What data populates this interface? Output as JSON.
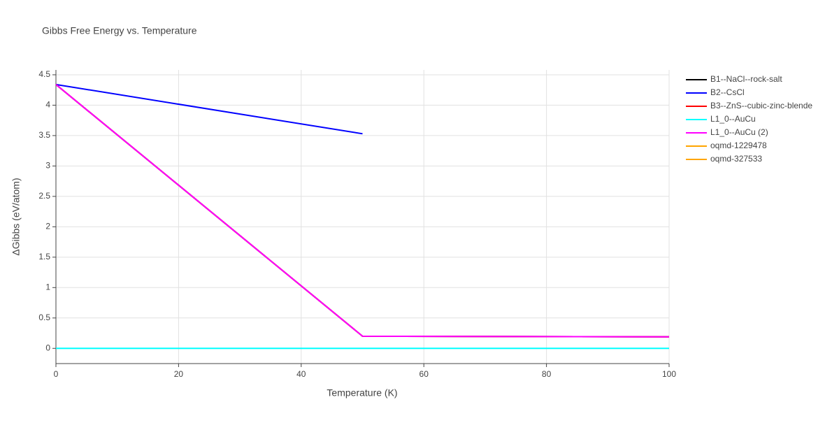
{
  "chart_data": {
    "type": "line",
    "title": "Gibbs Free Energy vs. Temperature",
    "x_label": "Temperature (K)",
    "y_label": "ΔGibbs (eV/atom)",
    "xlim": [
      0,
      100
    ],
    "xticks": [
      0,
      20,
      40,
      60,
      80,
      100
    ],
    "ylim": [
      -0.25,
      4.58
    ],
    "yticks": [
      0,
      0.5,
      1,
      1.5,
      2,
      2.5,
      3,
      3.5,
      4,
      4.5
    ],
    "grid": true,
    "legend": "right",
    "series": [
      {
        "name": "B1--NaCl--rock-salt",
        "color": "#000000",
        "x": [
          0,
          50,
          100
        ],
        "values": [
          4.34,
          0.2,
          0.19
        ]
      },
      {
        "name": "B2--CsCl",
        "color": "#0000ff",
        "x": [
          0,
          50
        ],
        "values": [
          4.34,
          3.53
        ]
      },
      {
        "name": "B3--ZnS--cubic-zinc-blende",
        "color": "#ff0000",
        "x": [
          0,
          50,
          100
        ],
        "values": [
          4.34,
          0.2,
          0.19
        ]
      },
      {
        "name": "L1_0--AuCu",
        "color": "#00ffff",
        "x": [
          0,
          100
        ],
        "values": [
          0,
          0
        ]
      },
      {
        "name": "L1_0--AuCu (2)",
        "color": "#ff00ff",
        "x": [
          0,
          50,
          100
        ],
        "values": [
          4.34,
          0.2,
          0.19
        ]
      },
      {
        "name": "oqmd-1229478",
        "color": "#ffa500",
        "x": [],
        "values": []
      },
      {
        "name": "oqmd-327533",
        "color": "#ffa500",
        "x": [],
        "values": []
      }
    ]
  }
}
